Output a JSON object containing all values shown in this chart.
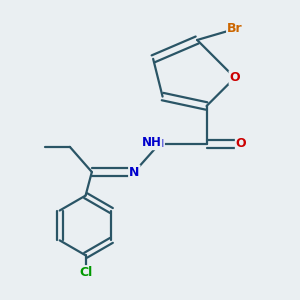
{
  "background_color": "#eaeff2",
  "bond_color": "#2a5566",
  "atom_colors": {
    "Br": "#cc6600",
    "O": "#cc0000",
    "N": "#0000cc",
    "Cl": "#009900",
    "H": "#2a5566",
    "C": "#2a5566"
  },
  "figsize": [
    3.0,
    3.0
  ],
  "dpi": 100
}
